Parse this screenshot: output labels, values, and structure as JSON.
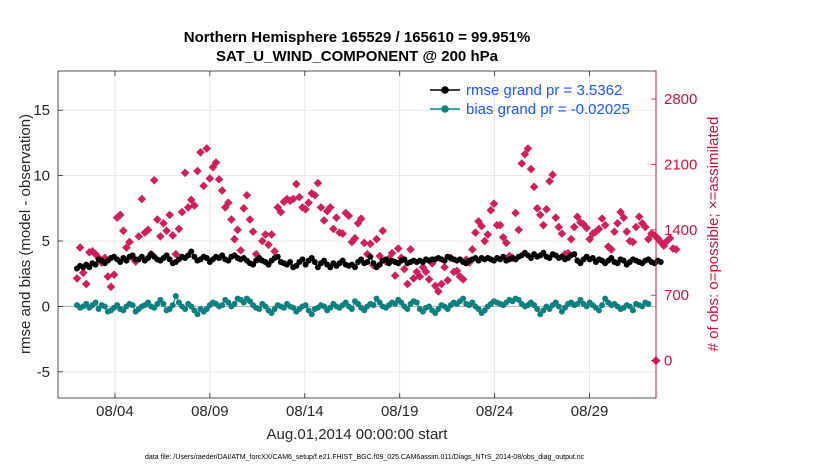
{
  "chart_data": {
    "type": "line",
    "title_line1": "Northern Hemisphere 165529 / 165610 = 99.951%",
    "title_line2": "SAT_U_WIND_COMPONENT @ 200 hPa",
    "xlabel": "Aug.01,2014 00:00:00 start",
    "ylabel_left": "rmse and bias (model - observation)",
    "ylabel_right": "# of obs: o=possible; ×=assimilated",
    "footnote": "data file: /Users/raeder/DAI/ATM_forcXX/CAM6_setup/f.e21.FHIST_BGC.f09_025.CAM6assim.011/Diags_NTrS_2014-08/obs_diag_output.nc",
    "xlim": [
      0,
      31.5
    ],
    "ylim": [
      -7,
      18
    ],
    "ylim_right": [
      -400,
      3100
    ],
    "x_ticks": [
      3,
      8,
      13,
      18,
      23,
      28
    ],
    "x_tick_labels": [
      "08/04",
      "08/09",
      "08/14",
      "08/19",
      "08/24",
      "08/29"
    ],
    "y_ticks": [
      -5,
      0,
      5,
      10,
      15
    ],
    "y_tick_labels": [
      "-5",
      "0",
      "5",
      "10",
      "15"
    ],
    "y_right_ticks": [
      0,
      700,
      1400,
      2100,
      2800
    ],
    "y_right_tick_labels": [
      "0",
      "700",
      "1400",
      "2100",
      "2800"
    ],
    "grid": true,
    "legend_position": "top-right",
    "series": [
      {
        "name": "rmse grand pr = 3.5362",
        "color": "#000000",
        "axis": "left",
        "values": [
          2.9,
          3.1,
          3.0,
          3.2,
          3.0,
          3.3,
          3.2,
          3.6,
          3.5,
          3.3,
          3.5,
          3.7,
          3.8,
          3.6,
          3.4,
          3.7,
          3.5,
          3.8,
          3.9,
          3.6,
          3.6,
          3.8,
          3.5,
          3.7,
          4.0,
          3.8,
          3.6,
          3.5,
          3.7,
          3.9,
          3.6,
          3.3,
          3.4,
          3.6,
          3.8,
          3.7,
          3.9,
          4.2,
          3.8,
          3.5,
          3.6,
          3.8,
          3.7,
          3.4,
          3.6,
          3.8,
          3.7,
          3.9,
          3.6,
          3.5,
          3.8,
          3.9,
          3.7,
          3.6,
          3.7,
          3.5,
          3.3,
          3.2,
          3.5,
          3.7,
          3.5,
          3.4,
          3.2,
          3.5,
          3.7,
          3.8,
          3.4,
          3.3,
          3.2,
          3.4,
          3.0,
          3.1,
          3.4,
          3.6,
          3.2,
          3.5,
          3.7,
          3.4,
          3.0,
          3.3,
          3.5,
          3.2,
          3.0,
          3.3,
          3.1,
          3.3,
          3.5,
          3.2,
          3.1,
          3.2,
          3.0,
          3.4,
          3.6,
          3.3,
          3.4,
          3.8,
          3.3,
          3.0,
          3.2,
          3.5,
          3.6,
          3.3,
          3.5,
          3.4,
          3.3,
          3.5,
          3.6,
          3.3,
          3.4,
          3.5,
          3.4,
          3.5,
          3.4,
          3.6,
          3.5,
          3.6,
          3.6,
          3.7,
          3.6,
          3.5,
          3.8,
          3.7,
          3.6,
          3.5,
          3.6,
          3.4,
          3.3,
          3.5,
          3.6,
          3.7,
          3.5,
          3.7,
          3.6,
          3.7,
          3.6,
          3.5,
          3.7,
          3.6,
          3.8,
          3.5,
          3.6,
          3.7,
          3.6,
          3.8,
          3.9,
          4.1,
          3.9,
          3.7,
          4.0,
          3.8,
          3.9,
          4.1,
          3.8,
          3.7,
          4.0,
          3.9,
          3.7,
          3.8,
          3.6,
          3.7,
          3.9,
          4.0,
          3.5,
          3.3,
          3.6,
          3.8,
          3.6,
          3.7,
          3.4,
          3.6,
          3.5,
          3.3,
          3.5,
          3.7,
          3.4,
          3.3,
          3.6,
          3.5,
          3.2,
          3.4,
          3.6,
          3.5,
          3.4,
          3.3,
          3.5,
          3.6,
          3.4,
          3.3,
          3.5,
          3.4
        ]
      },
      {
        "name": "bias grand pr = -0.02025",
        "color": "#0f8080",
        "axis": "left",
        "values": [
          0.1,
          -0.1,
          0.0,
          0.2,
          -0.1,
          0.1,
          0.3,
          -0.2,
          0.1,
          0.0,
          -0.4,
          -0.3,
          -0.1,
          0.1,
          -0.2,
          -0.3,
          0.0,
          0.2,
          0.1,
          -0.4,
          -0.2,
          0.0,
          0.1,
          0.3,
          0.0,
          -0.1,
          0.2,
          0.5,
          0.2,
          -0.3,
          -0.2,
          0.1,
          0.8,
          0.3,
          0.0,
          -0.2,
          0.2,
          0.0,
          -0.3,
          -0.6,
          -0.2,
          -0.4,
          -0.2,
          0.1,
          0.3,
          0.2,
          0.0,
          0.1,
          0.5,
          0.3,
          0.0,
          0.2,
          0.6,
          0.5,
          0.3,
          0.6,
          0.4,
          0.1,
          -0.1,
          -0.2,
          0.2,
          0.0,
          -0.3,
          -0.5,
          -0.2,
          0.1,
          0.0,
          -0.1,
          0.2,
          0.0,
          -0.1,
          -0.4,
          -0.2,
          0.0,
          0.1,
          -0.3,
          -0.6,
          -0.2,
          -0.1,
          0.1,
          0.0,
          -0.3,
          -0.1,
          0.2,
          0.0,
          -0.1,
          0.1,
          0.3,
          0.0,
          -0.2,
          0.4,
          0.2,
          -0.1,
          -0.3,
          0.0,
          0.2,
          0.1,
          0.6,
          0.3,
          0.0,
          -0.1,
          0.1,
          0.3,
          0.2,
          0.5,
          0.3,
          0.0,
          -0.2,
          0.2,
          0.4,
          0.3,
          -0.2,
          -0.4,
          -0.1,
          0.0,
          -0.3,
          -0.5,
          -0.2,
          0.1,
          0.0,
          -0.2,
          0.1,
          0.3,
          0.2,
          0.4,
          0.6,
          0.2,
          0.1,
          0.3,
          0.0,
          -0.2,
          -0.5,
          -0.3,
          0.0,
          0.2,
          0.4,
          0.3,
          0.2,
          0.1,
          0.3,
          0.5,
          0.4,
          0.6,
          0.5,
          0.2,
          0.0,
          0.1,
          0.3,
          0.1,
          -0.2,
          -0.6,
          -0.3,
          0.0,
          -0.2,
          0.1,
          0.3,
          0.0,
          -0.4,
          -0.1,
          0.2,
          0.3,
          0.1,
          0.2,
          0.5,
          0.2,
          0.0,
          0.3,
          0.1,
          -0.1,
          -0.3,
          0.1,
          0.6,
          0.3,
          0.1,
          0.2,
          0.0,
          -0.2,
          -0.1,
          0.1,
          0.0,
          -0.3,
          0.2,
          0.1,
          0.0,
          0.3,
          0.2
        ]
      },
      {
        "name": "# obs",
        "color": "#d01f5c",
        "axis": "right",
        "values": [
          880,
          1210,
          940,
          820,
          1160,
          1170,
          1140,
          1100,
          1050,
          1100,
          900,
          790,
          920,
          1530,
          1560,
          1390,
          1210,
          1270,
          1100,
          1060,
          1330,
          1730,
          1370,
          1400,
          1140,
          1930,
          1510,
          1330,
          1470,
          1390,
          1560,
          1340,
          1140,
          1410,
          1590,
          2010,
          1640,
          1720,
          1660,
          2030,
          2230,
          1870,
          2270,
          1950,
          2070,
          2120,
          1940,
          1820,
          1640,
          1690,
          1510,
          1300,
          1400,
          1180,
          1630,
          1770,
          1510,
          1380,
          1140,
          1090,
          1280,
          1350,
          1240,
          1350,
          1170,
          1640,
          1590,
          1700,
          1730,
          1710,
          1730,
          1890,
          1750,
          1640,
          1620,
          1690,
          1790,
          1770,
          1900,
          1640,
          1500,
          1600,
          1640,
          1410,
          1530,
          1370,
          1360,
          1580,
          1550,
          1270,
          1310,
          1470,
          1520,
          1260,
          1140,
          1250,
          1020,
          1300,
          1120,
          1390,
          1060,
          1090,
          1150,
          910,
          1200,
          1100,
          980,
          820,
          1190,
          880,
          950,
          900,
          1000,
          950,
          870,
          1040,
          800,
          740,
          820,
          1000,
          860,
          1100,
          950,
          960,
          900,
          870,
          1080,
          1050,
          1190,
          1370,
          1490,
          1440,
          1280,
          1350,
          1610,
          1680,
          1450,
          1450,
          1320,
          1260,
          1120,
          1100,
          1580,
          1400,
          2110,
          2210,
          2270,
          2050,
          1860,
          1630,
          1560,
          1450,
          1620,
          1920,
          1990,
          1530,
          1430,
          1360,
          1140,
          1150,
          1300,
          1430,
          1540,
          1480,
          1460,
          1420,
          1300,
          1360,
          1380,
          1410,
          1520,
          1450,
          1220,
          1190,
          1380,
          1470,
          1590,
          1530,
          1380,
          1280,
          1270,
          1430,
          1540,
          1470,
          1430,
          1300,
          1360,
          1340,
          1310,
          1270,
          1230,
          1280,
          1310,
          1200,
          1190
        ]
      }
    ]
  }
}
